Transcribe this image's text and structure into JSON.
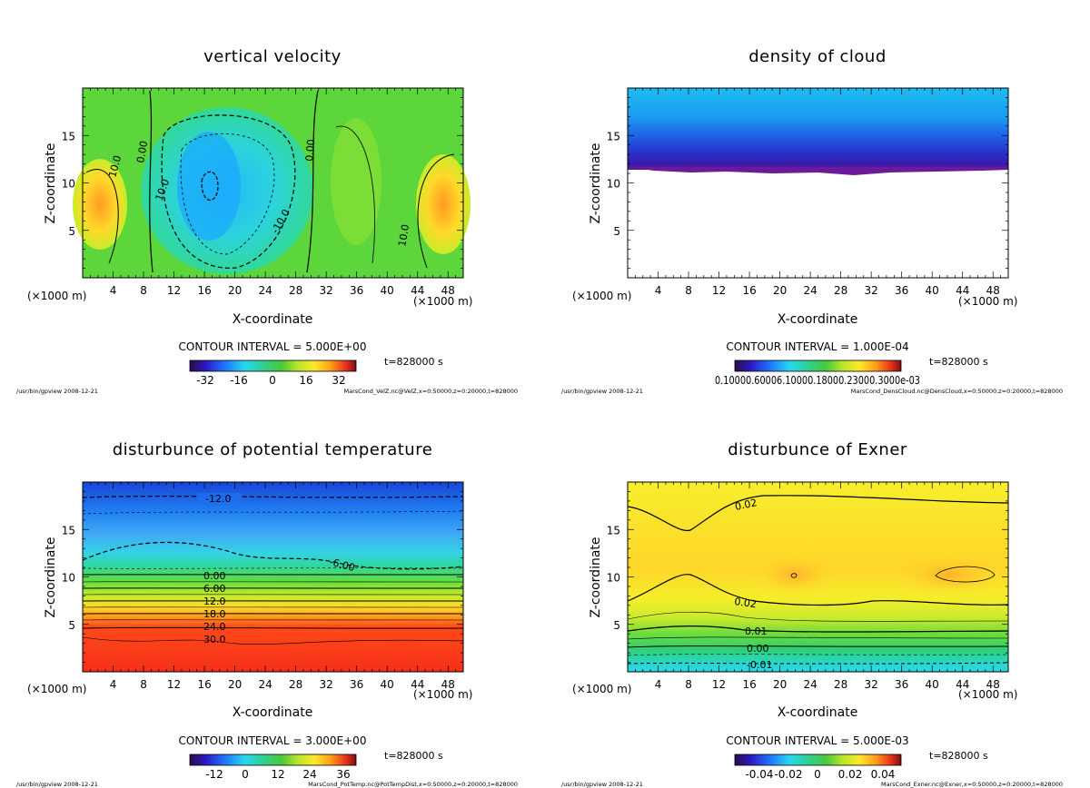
{
  "chart_data": [
    {
      "type": "heatmap",
      "title": "vertical velocity",
      "xlabel": "X-coordinate",
      "ylabel": "Z-coordinate",
      "x_unit": "(×1000 m)",
      "xticks": [
        4,
        8,
        12,
        16,
        20,
        24,
        28,
        32,
        36,
        40,
        44,
        48
      ],
      "yticks": [
        5,
        10,
        15
      ],
      "xlim": [
        0,
        50
      ],
      "ylim": [
        0,
        20
      ],
      "contour_interval": "CONTOUR INTERVAL = 5.000E+00",
      "time": "t=828000 s",
      "colorbar_ticks": [
        "-32",
        "-16",
        "0",
        "16",
        "32"
      ],
      "contour_labels": [
        "0.00",
        "10.0",
        "-10.0",
        "10.0",
        "0.00",
        "10.0"
      ],
      "footer_left": "/usr/bin/gpview 2008-12-21",
      "footer_right": "MarsCond_VelZ.nc@VelZ,x=0:50000,z=0:20000,t=828000"
    },
    {
      "type": "heatmap",
      "title": "density of cloud",
      "xlabel": "X-coordinate",
      "ylabel": "Z-coordinate",
      "x_unit": "(×1000 m)",
      "xticks": [
        4,
        8,
        12,
        16,
        20,
        24,
        28,
        32,
        36,
        40,
        44,
        48
      ],
      "yticks": [
        5,
        10,
        15
      ],
      "xlim": [
        0,
        50
      ],
      "ylim": [
        0,
        20
      ],
      "contour_interval": "CONTOUR INTERVAL = 1.000E-04",
      "time": "t=828000 s",
      "colorbar_ticks": [
        "0.10000.60006.10000.18000.23000.3000e-03"
      ],
      "footer_left": "/usr/bin/gpview 2008-12-21",
      "footer_right": "MarsCond_DensCloud.nc@DensCloud,x=0:50000,z=0:20000,t=828000"
    },
    {
      "type": "heatmap",
      "title": "disturbunce of potential temperature",
      "xlabel": "X-coordinate",
      "ylabel": "Z-coordinate",
      "x_unit": "(×1000 m)",
      "xticks": [
        4,
        8,
        12,
        16,
        20,
        24,
        28,
        32,
        36,
        40,
        44,
        48
      ],
      "yticks": [
        5,
        10,
        15
      ],
      "xlim": [
        0,
        50
      ],
      "ylim": [
        0,
        20
      ],
      "contour_interval": "CONTOUR INTERVAL = 3.000E+00",
      "time": "t=828000 s",
      "colorbar_ticks": [
        "-12",
        "0",
        "12",
        "24",
        "36"
      ],
      "contour_labels": [
        "-12.0",
        "-6.00",
        "0.00",
        "6.00",
        "12.0",
        "18.0",
        "24.0",
        "30.0"
      ],
      "footer_left": "/usr/bin/gpview 2008-12-21",
      "footer_right": "MarsCond_PotTemp.nc@PotTempDist,x=0:50000,z=0:20000,t=828000"
    },
    {
      "type": "heatmap",
      "title": "disturbunce of Exner",
      "xlabel": "X-coordinate",
      "ylabel": "Z-coordinate",
      "x_unit": "(×1000 m)",
      "xticks": [
        4,
        8,
        12,
        16,
        20,
        24,
        28,
        32,
        36,
        40,
        44,
        48
      ],
      "yticks": [
        5,
        10,
        15
      ],
      "xlim": [
        0,
        50
      ],
      "ylim": [
        0,
        20
      ],
      "contour_interval": "CONTOUR INTERVAL = 5.000E-03",
      "time": "t=828000 s",
      "colorbar_ticks": [
        "-0.04",
        "-0.02",
        "0",
        "0.02",
        "0.04"
      ],
      "contour_labels": [
        "0.02",
        "0.02",
        "0.01",
        "0.00",
        "-0.01"
      ],
      "footer_left": "/usr/bin/gpview 2008-12-21",
      "footer_right": "MarsCond_Exner.nc@Exner,x=0:50000,z=0:20000,t=828000"
    }
  ]
}
